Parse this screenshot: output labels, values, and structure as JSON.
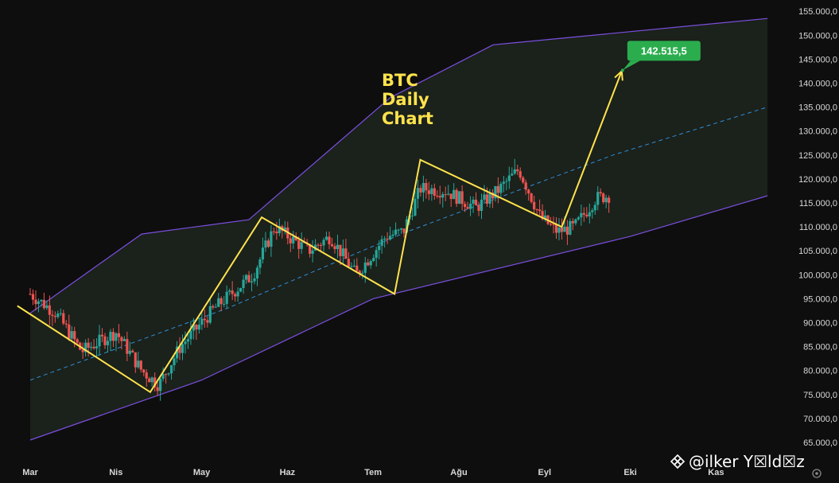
{
  "chart_data": {
    "type": "candlestick",
    "title": "",
    "annotation": [
      "BTC",
      "Daily",
      "Chart"
    ],
    "xlabel": "",
    "ylabel": "",
    "ylim": [
      62500,
      157500
    ],
    "y_ticks": [
      "65.000,0",
      "70.000,0",
      "75.000,0",
      "80.000,0",
      "85.000,0",
      "90.000,0",
      "95.000,0",
      "100.000,0",
      "105.000,0",
      "110.000,0",
      "115.000,0",
      "120.000,0",
      "125.000,0",
      "130.000,0",
      "135.000,0",
      "140.000,0",
      "145.000,0",
      "150.000,0",
      "155.000,0"
    ],
    "x_ticks": [
      "Mar",
      "Nis",
      "May",
      "Haz",
      "Tem",
      "Ağu",
      "Eyl",
      "Eki",
      "Kas"
    ],
    "target_label": "142.515,5",
    "target_value": 142515.5,
    "channel": {
      "upper": [
        [
          0,
          92000
        ],
        [
          1.3,
          108500
        ],
        [
          2.55,
          111500
        ],
        [
          4.2,
          137000
        ],
        [
          5.4,
          148000
        ],
        [
          8.6,
          153500
        ]
      ],
      "lower": [
        [
          0,
          65500
        ],
        [
          2.0,
          78000
        ],
        [
          4.0,
          95000
        ],
        [
          7.0,
          108000
        ],
        [
          8.6,
          116500
        ]
      ],
      "mid": [
        [
          0,
          78000
        ],
        [
          2.3,
          93000
        ],
        [
          4.4,
          109000
        ],
        [
          6.8,
          125000
        ],
        [
          8.6,
          135000
        ]
      ]
    },
    "zigzag": [
      [
        -0.15,
        93500
      ],
      [
        1.4,
        75500
      ],
      [
        2.7,
        112000
      ],
      [
        4.25,
        96000
      ],
      [
        4.55,
        124000
      ],
      [
        6.2,
        110000
      ],
      [
        6.9,
        142515.5
      ]
    ],
    "candles_anchors": [
      [
        0,
        96000
      ],
      [
        0.3,
        92000
      ],
      [
        0.6,
        84000
      ],
      [
        1.0,
        88000
      ],
      [
        1.3,
        80000
      ],
      [
        1.5,
        77000
      ],
      [
        1.75,
        85000
      ],
      [
        2.15,
        93000
      ],
      [
        2.6,
        100000
      ],
      [
        2.85,
        110000
      ],
      [
        3.25,
        105000
      ],
      [
        3.5,
        108000
      ],
      [
        3.8,
        100000
      ],
      [
        4.15,
        108000
      ],
      [
        4.35,
        109000
      ],
      [
        4.55,
        118000
      ],
      [
        4.85,
        117500
      ],
      [
        5.2,
        114000
      ],
      [
        5.45,
        117500
      ],
      [
        5.7,
        122000
      ],
      [
        5.95,
        112000
      ],
      [
        6.15,
        109000
      ],
      [
        6.35,
        110000
      ],
      [
        6.6,
        116000
      ],
      [
        6.75,
        116500
      ]
    ],
    "colors": {
      "up": "#26a69a",
      "down": "#ef5350",
      "channel_line": "#7b4fe0",
      "channel_fill": "#1b211b",
      "mid_line": "#2f8fd8",
      "zigzag": "#ffe34d",
      "target_tag": "#2bad4e"
    }
  },
  "watermark": "@ilker Y☒ld☒z"
}
